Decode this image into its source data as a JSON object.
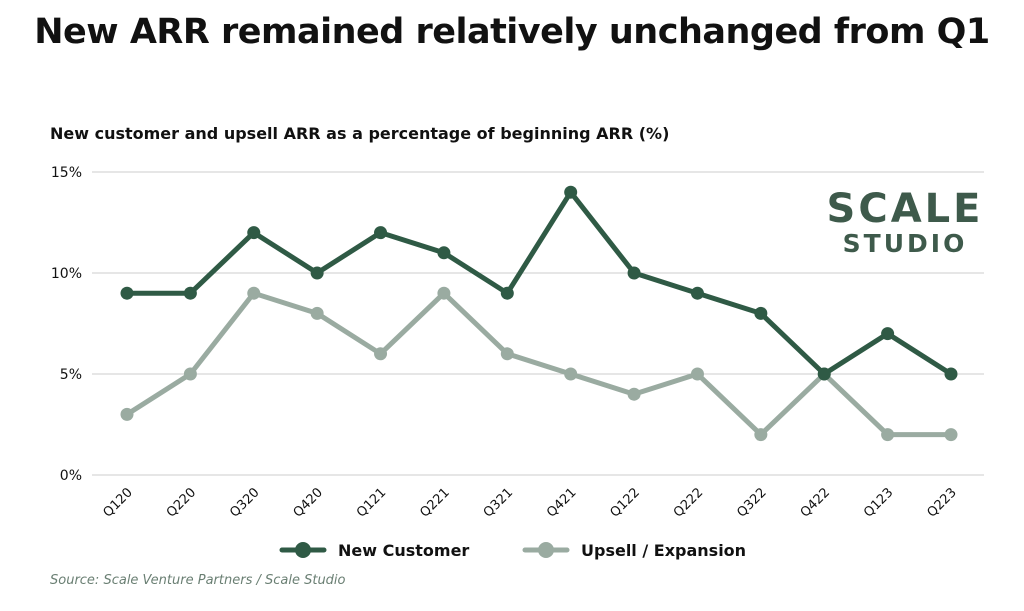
{
  "title": "New ARR remained relatively unchanged from Q1",
  "subtitle": "New customer and upsell ARR as a percentage of beginning ARR (%)",
  "source": "Source: Scale Venture Partners / Scale Studio",
  "logo": {
    "line1": "SCALE",
    "line2": "STUDIO"
  },
  "colors": {
    "new_customer": "#2f5a45",
    "upsell": "#9aaba1",
    "grid": "#cccccc",
    "logo": "#3e5a4b"
  },
  "chart_data": {
    "type": "line",
    "title": "New ARR remained relatively unchanged from Q1",
    "ylabel": "New customer and upsell ARR as a percentage of beginning ARR (%)",
    "categories": [
      "Q120",
      "Q220",
      "Q320",
      "Q420",
      "Q121",
      "Q221",
      "Q321",
      "Q421",
      "Q122",
      "Q222",
      "Q322",
      "Q422",
      "Q123",
      "Q223"
    ],
    "yticks": [
      "15%",
      "10%",
      "5%",
      "0%"
    ],
    "ytick_values": [
      15,
      10,
      5,
      0
    ],
    "ylim": [
      0,
      15
    ],
    "grid": true,
    "legend_position": "bottom",
    "series": [
      {
        "name": "New Customer",
        "values": [
          9,
          9,
          12,
          10,
          12,
          11,
          9,
          14,
          10,
          9,
          8,
          5,
          7,
          5
        ]
      },
      {
        "name": "Upsell / Expansion",
        "values": [
          3,
          5,
          9,
          8,
          6,
          9,
          6,
          5,
          4,
          5,
          2,
          5,
          2,
          2
        ]
      }
    ]
  }
}
